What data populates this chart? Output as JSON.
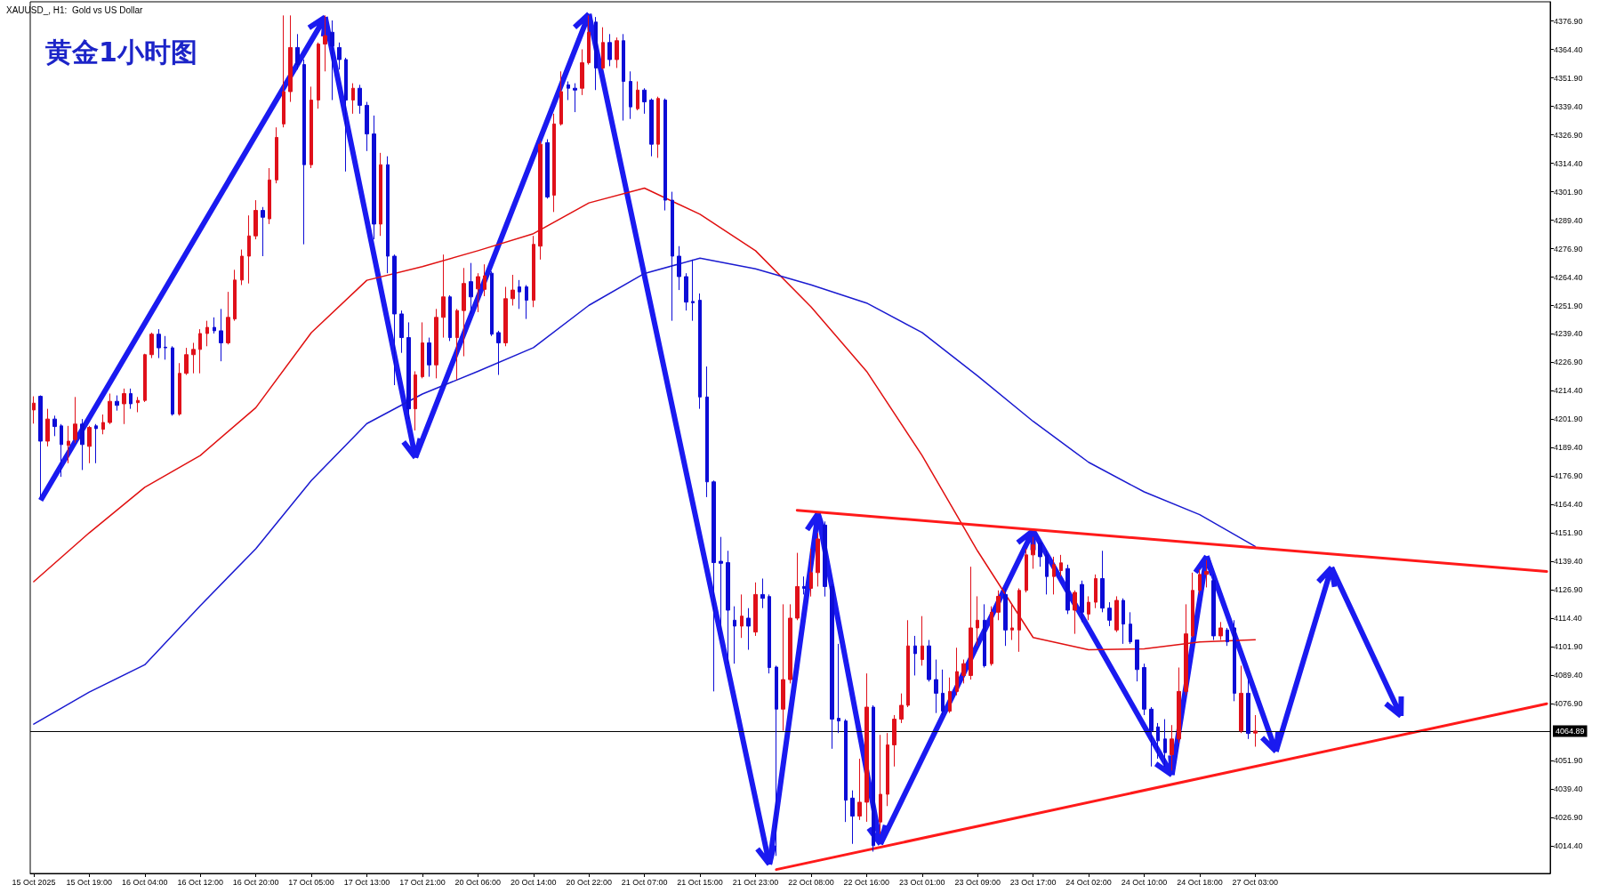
{
  "chart_data": {
    "type": "candlestick",
    "title": "黄金1小时图",
    "subtitle": "XAUUSD_, H1:  Gold vs US Dollar",
    "categories": [
      "15 Oct 2025",
      null,
      null,
      null,
      null,
      null,
      null,
      null,
      "15 Oct 19:00",
      null,
      null,
      null,
      null,
      null,
      null,
      null,
      "16 Oct 04:00",
      null,
      null,
      null,
      null,
      null,
      null,
      null,
      "16 Oct 12:00",
      null,
      null,
      null,
      null,
      null,
      null,
      null,
      "16 Oct 20:00",
      null,
      null,
      null,
      null,
      null,
      null,
      null,
      "17 Oct 05:00",
      null,
      null,
      null,
      null,
      null,
      null,
      null,
      "17 Oct 13:00",
      null,
      null,
      null,
      null,
      null,
      null,
      null,
      "17 Oct 21:00",
      null,
      null,
      null,
      null,
      null,
      null,
      null,
      "20 Oct 06:00",
      null,
      null,
      null,
      null,
      null,
      null,
      null,
      "20 Oct 14:00",
      null,
      null,
      null,
      null,
      null,
      null,
      null,
      "20 Oct 22:00",
      null,
      null,
      null,
      null,
      null,
      null,
      null,
      "21 Oct 07:00",
      null,
      null,
      null,
      null,
      null,
      null,
      null,
      "21 Oct 15:00",
      null,
      null,
      null,
      null,
      null,
      null,
      null,
      "21 Oct 23:00",
      null,
      null,
      null,
      null,
      null,
      null,
      null,
      "22 Oct 08:00",
      null,
      null,
      null,
      null,
      null,
      null,
      null,
      "22 Oct 16:00",
      null,
      null,
      null,
      null,
      null,
      null,
      null,
      "23 Oct 01:00",
      null,
      null,
      null,
      null,
      null,
      null,
      null,
      "23 Oct 09:00",
      null,
      null,
      null,
      null,
      null,
      null,
      null,
      "23 Oct 17:00",
      null,
      null,
      null,
      null,
      null,
      null,
      null,
      "24 Oct 02:00",
      null,
      null,
      null,
      null,
      null,
      null,
      null,
      "24 Oct 10:00",
      null,
      null,
      null,
      null,
      null,
      null,
      null,
      "24 Oct 18:00",
      null,
      null,
      null,
      null,
      null,
      null,
      null,
      "27 Oct 03:00",
      null,
      null,
      null,
      null,
      null,
      null,
      null,
      null,
      null,
      null,
      null,
      null,
      null,
      null,
      null,
      null,
      null,
      null,
      null,
      null,
      null,
      null,
      null,
      null,
      null,
      null,
      null,
      null,
      null,
      null,
      null,
      null,
      null,
      null,
      null,
      null,
      null,
      null,
      null,
      null,
      null,
      null
    ],
    "ohlc": [
      [
        4206,
        4212,
        4200,
        4209
      ],
      [
        4212,
        4212.4,
        4167.7,
        4192.3
      ],
      [
        4192.3,
        4206.5,
        4190,
        4202
      ],
      [
        4202,
        4203.5,
        4194.5,
        4198.7
      ],
      [
        4199,
        4199.8,
        4176.6,
        4190.8
      ],
      [
        4190.4,
        4199,
        4182.6,
        4192.3
      ],
      [
        4193,
        4211.7,
        4191.5,
        4199.8
      ],
      [
        4199.8,
        4202,
        4179.6,
        4190.8
      ],
      [
        4190,
        4199,
        4182.6,
        4198.3
      ],
      [
        4199,
        4199.8,
        4182.6,
        4197.8
      ],
      [
        4197.5,
        4204,
        4195.3,
        4200.5
      ],
      [
        4200.5,
        4213.2,
        4199.8,
        4209.8
      ],
      [
        4209.8,
        4212.4,
        4205.7,
        4208
      ],
      [
        4208.7,
        4215.4,
        4199.8,
        4213.2
      ],
      [
        4213.2,
        4215.4,
        4206.5,
        4208.7
      ],
      [
        4209.2,
        4211.7,
        4205,
        4210.2
      ],
      [
        4210.2,
        4230.7,
        4209.5,
        4230.3
      ],
      [
        4230.3,
        4240,
        4228.8,
        4239.3
      ],
      [
        4239.3,
        4241.5,
        4228.8,
        4233.3
      ],
      [
        4233.6,
        4238.5,
        4228.1,
        4233.3
      ],
      [
        4233.3,
        4234,
        4203.5,
        4204.2
      ],
      [
        4204.2,
        4226.6,
        4203.5,
        4222.1
      ],
      [
        4222.1,
        4233.3,
        4221.4,
        4230.3
      ],
      [
        4230.3,
        4235.5,
        4222.1,
        4232.6
      ],
      [
        4232.6,
        4241.5,
        4222.1,
        4239.6
      ],
      [
        4239.6,
        4245.2,
        4234,
        4242.3
      ],
      [
        4242.3,
        4246.7,
        4239.6,
        4240.8
      ],
      [
        4240.8,
        4250.4,
        4227.4,
        4235.5
      ],
      [
        4235.5,
        4257.9,
        4234.8,
        4246.7
      ],
      [
        4246,
        4267.6,
        4245.2,
        4263.1
      ],
      [
        4263.1,
        4276.5,
        4260.9,
        4273.6
      ],
      [
        4273.6,
        4291.5,
        4261.6,
        4282.5
      ],
      [
        4282.5,
        4298.2,
        4281,
        4293.7
      ],
      [
        4293.7,
        4295.2,
        4273.6,
        4290.7
      ],
      [
        4290,
        4312.3,
        4287.7,
        4307.1
      ],
      [
        4307.1,
        4330.2,
        4305.6,
        4325.8
      ],
      [
        4331.7,
        4379.4,
        4330.2,
        4345.9
      ],
      [
        4345.9,
        4379.4,
        4341.4,
        4365.3
      ],
      [
        4365.3,
        4371.2,
        4355.6,
        4357.8
      ],
      [
        4357.8,
        4360,
        4278.8,
        4313.8
      ],
      [
        4313.8,
        4348.1,
        4312.3,
        4342.2
      ],
      [
        4342.2,
        4367.5,
        4338.4,
        4366.8
      ],
      [
        4366.8,
        4379.4,
        4354.8,
        4370.5
      ],
      [
        4372,
        4377.2,
        4342.2,
        4366
      ],
      [
        4365.3,
        4367.5,
        4355.6,
        4360
      ],
      [
        4360,
        4360.8,
        4310.8,
        4342.2
      ],
      [
        4342.2,
        4349.6,
        4336.2,
        4347.4
      ],
      [
        4347.4,
        4348.9,
        4336.2,
        4339.9
      ],
      [
        4339.9,
        4341.4,
        4319.8,
        4327.3
      ],
      [
        4327.3,
        4335.4,
        4281,
        4287.7
      ],
      [
        4287.7,
        4319,
        4282.5,
        4313.8
      ],
      [
        4313.8,
        4317.5,
        4266.1,
        4273.6
      ],
      [
        4273.6,
        4274.3,
        4216.9,
        4248.2
      ],
      [
        4248.2,
        4249.7,
        4231.1,
        4237.8
      ],
      [
        4237.8,
        4244.5,
        4202,
        4206.5
      ],
      [
        4206.5,
        4223,
        4197,
        4221.4
      ],
      [
        4220.6,
        4244.5,
        4219.9,
        4235.5
      ],
      [
        4235.5,
        4237.8,
        4220.6,
        4225.8
      ],
      [
        4225.8,
        4250.4,
        4219.9,
        4246.7
      ],
      [
        4246.7,
        4274.3,
        4237.8,
        4255.7
      ],
      [
        4255.7,
        4256.4,
        4236.3,
        4237.8
      ],
      [
        4237.8,
        4250.4,
        4219.1,
        4249.7
      ],
      [
        4249.7,
        4268.4,
        4229.6,
        4261.6
      ],
      [
        4262.4,
        4270.6,
        4248.2,
        4255.7
      ],
      [
        4259.2,
        4266.1,
        4249,
        4264.6
      ],
      [
        4259,
        4270,
        4256,
        4265
      ],
      [
        4266.1,
        4266.9,
        4238.5,
        4239.3
      ],
      [
        4240,
        4240.8,
        4221.4,
        4235.5
      ],
      [
        4235.5,
        4260.1,
        4234,
        4254.9
      ],
      [
        4254.9,
        4265.4,
        4251.9,
        4258.7
      ],
      [
        4260.1,
        4263.1,
        4250.4,
        4257.9
      ],
      [
        4260.1,
        4260.9,
        4246,
        4254.2
      ],
      [
        4254.2,
        4282.5,
        4251.2,
        4278.8
      ],
      [
        4278,
        4324.3,
        4272.1,
        4322.8
      ],
      [
        4323.5,
        4325,
        4298.9,
        4299.6
      ],
      [
        4300.4,
        4336.2,
        4293,
        4331.7
      ],
      [
        4331.7,
        4354.8,
        4331,
        4345.9
      ],
      [
        4348.9,
        4350.4,
        4342.2,
        4347.4
      ],
      [
        4347.4,
        4349.6,
        4336.9,
        4346.6
      ],
      [
        4347.4,
        4364.5,
        4344.4,
        4358.6
      ],
      [
        4358.6,
        4379.4,
        4357.8,
        4372
      ],
      [
        4376.5,
        4378.7,
        4346.6,
        4356.3
      ],
      [
        4356.3,
        4374.2,
        4355.6,
        4367.5
      ],
      [
        4367.5,
        4371.2,
        4357.1,
        4360
      ],
      [
        4360,
        4369.7,
        4356.3,
        4368.3
      ],
      [
        4368.3,
        4371.2,
        4333.2,
        4350.4
      ],
      [
        4350.4,
        4354.8,
        4333.9,
        4339.2
      ],
      [
        4338.4,
        4350.4,
        4337.7,
        4346.6
      ],
      [
        4346.6,
        4347.4,
        4336.2,
        4341.4
      ],
      [
        4342.2,
        4342.9,
        4317.5,
        4322.8
      ],
      [
        4322.8,
        4343.7,
        4316.8,
        4342.9
      ],
      [
        4342.2,
        4342.9,
        4293.7,
        4298.2
      ],
      [
        4298.2,
        4301.9,
        4245.2,
        4273.6
      ],
      [
        4273.6,
        4278,
        4258.7,
        4264.6
      ],
      [
        4264.6,
        4266.1,
        4249.7,
        4253.4
      ],
      [
        4253.7,
        4272.1,
        4245.2,
        4253.1
      ],
      [
        4254.2,
        4257.2,
        4206.5,
        4211.7
      ],
      [
        4211.7,
        4225.1,
        4167.7,
        4174.4
      ],
      [
        4174.4,
        4175,
        4082.3,
        4138.9
      ],
      [
        4139.5,
        4150.2,
        4104.9,
        4138.6
      ],
      [
        4138.9,
        4144.1,
        4094.5,
        4118
      ],
      [
        4113.6,
        4119.7,
        4094.5,
        4111
      ],
      [
        4111,
        4124.9,
        4105.8,
        4115.4
      ],
      [
        4114.5,
        4118.9,
        4100.6,
        4111
      ],
      [
        4108.4,
        4130.2,
        4106.7,
        4124.9
      ],
      [
        4124.9,
        4131.9,
        4118.9,
        4123.2
      ],
      [
        4124,
        4124.9,
        4090.2,
        4092.8
      ],
      [
        4093,
        4093.6,
        4010,
        4074.5
      ],
      [
        4074.5,
        4120.6,
        4065,
        4087.5
      ],
      [
        4087.5,
        4120.6,
        4085.8,
        4114.5
      ],
      [
        4114.5,
        4143.2,
        4113.6,
        4128.4
      ],
      [
        4128.4,
        4132.8,
        4124.9,
        4127.6
      ],
      [
        4127.6,
        4145,
        4124,
        4134.5
      ],
      [
        4134.5,
        4151.9,
        4128.4,
        4149.3
      ],
      [
        4155.4,
        4157,
        4124,
        4128.4
      ],
      [
        4128.4,
        4129.3,
        4057.1,
        4070.1
      ],
      [
        4070.5,
        4103.2,
        4064,
        4069.3
      ],
      [
        4069.3,
        4070.1,
        4024.9,
        4034.5
      ],
      [
        4035.4,
        4038.8,
        4015.3,
        4027.5
      ],
      [
        4027.5,
        4052.7,
        4025.8,
        4033.6
      ],
      [
        4033.6,
        4090.2,
        4025,
        4075.4
      ],
      [
        4075.4,
        4076.2,
        4011.9,
        4014.5
      ],
      [
        4024.9,
        4063.2,
        4019.7,
        4037.1
      ],
      [
        4037.1,
        4064,
        4031.9,
        4058.8
      ],
      [
        4058.8,
        4071.9,
        4049.3,
        4070.1
      ],
      [
        4070.1,
        4081.4,
        4068.4,
        4076.2
      ],
      [
        4076.2,
        4113.6,
        4075.4,
        4102.3
      ],
      [
        4102.3,
        4106.7,
        4089.3,
        4098.9
      ],
      [
        4096.3,
        4115.4,
        4093.6,
        4102.3
      ],
      [
        4102.3,
        4104.9,
        4086.6,
        4087.5
      ],
      [
        4087.5,
        4096.3,
        4072.8,
        4081.5
      ],
      [
        4081.5,
        4091.9,
        4071.9,
        4073.6
      ],
      [
        4073.6,
        4088.4,
        4072.8,
        4082.3
      ],
      [
        4082.3,
        4101.5,
        4080.6,
        4091
      ],
      [
        4089.3,
        4096.3,
        4085.8,
        4094.5
      ],
      [
        4089.3,
        4137.1,
        4087.5,
        4110.2
      ],
      [
        4110.2,
        4124.1,
        4102.3,
        4113.6
      ],
      [
        4113.6,
        4120.6,
        4092.8,
        4093.6
      ],
      [
        4094.5,
        4119.7,
        4093.6,
        4117.1
      ],
      [
        4117.1,
        4126.7,
        4113.6,
        4124.1
      ],
      [
        4124.9,
        4127.6,
        4102.3,
        4109.3
      ],
      [
        4109.3,
        4120.6,
        4104.9,
        4110.2
      ],
      [
        4109.3,
        4127.6,
        4099.7,
        4126.7
      ],
      [
        4126.7,
        4145,
        4125.8,
        4142.3
      ],
      [
        4142.3,
        4150.2,
        4136.2,
        4146.7
      ],
      [
        4147.5,
        4148.4,
        4137.1,
        4141.5
      ],
      [
        4142.3,
        4144.1,
        4124.9,
        4132.8
      ],
      [
        4132.8,
        4141.5,
        4124.9,
        4138
      ],
      [
        4135.4,
        4142.3,
        4132.8,
        4138.8
      ],
      [
        4136.3,
        4138,
        4116.3,
        4118
      ],
      [
        4118,
        4126.7,
        4107.6,
        4125.8
      ],
      [
        4129.3,
        4131,
        4112.8,
        4117.1
      ],
      [
        4116.3,
        4124.1,
        4113.6,
        4121.5
      ],
      [
        4121.5,
        4133.7,
        4118.9,
        4131.9
      ],
      [
        4131.9,
        4144.1,
        4117.1,
        4118.9
      ],
      [
        4118.9,
        4121.5,
        4111,
        4113.6
      ],
      [
        4109.3,
        4124.1,
        4108.4,
        4122.3
      ],
      [
        4122.3,
        4123.2,
        4103.2,
        4111.9
      ],
      [
        4111.9,
        4117.1,
        4103.2,
        4104.1
      ],
      [
        4104.9,
        4104.9,
        4086.7,
        4091.9
      ],
      [
        4092.8,
        4094.5,
        4071.9,
        4074.5
      ],
      [
        4074.5,
        4075.4,
        4049.3,
        4065
      ],
      [
        4066.7,
        4068.4,
        4052.7,
        4060.6
      ],
      [
        4061.4,
        4070.1,
        4049.3,
        4055.4
      ],
      [
        4054.5,
        4067.5,
        4047.5,
        4061.4
      ],
      [
        4061.4,
        4092.8,
        4059.7,
        4082.3
      ],
      [
        4082.3,
        4120.6,
        4080.6,
        4107.6
      ],
      [
        4106.7,
        4134.5,
        4106,
        4126.7
      ],
      [
        4126.7,
        4136,
        4125,
        4133.7
      ],
      [
        4133.7,
        4140,
        4128,
        4135
      ],
      [
        4131,
        4133.7,
        4104.9,
        4106.7
      ],
      [
        4106.7,
        4112.8,
        4104.9,
        4110.2
      ],
      [
        4109.3,
        4110.2,
        4102.3,
        4104.1
      ],
      [
        4110.2,
        4113.6,
        4078,
        4081.5
      ],
      [
        4064.9,
        4093.6,
        4064,
        4081.5
      ],
      [
        4081.5,
        4087.5,
        4061.4,
        4063.8
      ],
      [
        4064,
        4071.9,
        4058,
        4064.89
      ],
      null,
      null,
      null,
      null,
      null,
      null,
      null,
      null,
      null,
      null,
      null,
      null,
      null,
      null,
      null,
      null,
      null,
      null,
      null,
      null,
      null,
      null,
      null,
      null,
      null,
      null,
      null,
      null,
      null,
      null,
      null,
      null,
      null,
      null,
      null,
      null,
      null,
      null,
      null,
      null,
      null,
      null
    ],
    "colors": [
      "#e0101a",
      "#0c0cd6",
      "#e0101a",
      "#0c0cd6",
      "#0c0cd6",
      "#e0101a",
      "#e0101a",
      "#0c0cd6",
      "#e0101a",
      "#0c0cd6",
      "#e0101a",
      "#e0101a",
      "#0c0cd6",
      "#e0101a",
      "#0c0cd6",
      "#e0101a",
      "#e0101a",
      "#e0101a",
      "#0c0cd6",
      "#0c0cd6",
      "#0c0cd6",
      "#e0101a",
      "#e0101a",
      "#e0101a",
      "#e0101a",
      "#e0101a",
      "#0c0cd6",
      "#0c0cd6",
      "#e0101a",
      "#e0101a",
      "#e0101a",
      "#e0101a",
      "#e0101a",
      "#0c0cd6",
      "#e0101a",
      "#e0101a",
      "#e0101a",
      "#e0101a",
      "#0c0cd6",
      "#0c0cd6",
      "#e0101a",
      "#e0101a",
      "#e0101a",
      "#0c0cd6",
      "#0c0cd6",
      "#0c0cd6",
      "#e0101a",
      "#0c0cd6",
      "#0c0cd6",
      "#0c0cd6",
      "#e0101a",
      "#0c0cd6",
      "#0c0cd6",
      "#0c0cd6",
      "#0c0cd6",
      "#e0101a",
      "#e0101a",
      "#0c0cd6",
      "#e0101a",
      "#e0101a",
      "#0c0cd6",
      "#e0101a",
      "#e0101a",
      "#0c0cd6",
      "#e0101a",
      "#e0101a",
      "#0c0cd6",
      "#0c0cd6",
      "#e0101a",
      "#e0101a",
      "#0c0cd6",
      "#0c0cd6",
      "#e0101a",
      "#e0101a",
      "#0c0cd6",
      "#e0101a",
      "#e0101a",
      "#0c0cd6",
      "#0c0cd6",
      "#e0101a",
      "#e0101a",
      "#0c0cd6",
      "#e0101a",
      "#0c0cd6",
      "#e0101a",
      "#0c0cd6",
      "#0c0cd6",
      "#e0101a",
      "#0c0cd6",
      "#0c0cd6",
      "#e0101a",
      "#0c0cd6",
      "#0c0cd6",
      "#0c0cd6",
      "#0c0cd6",
      "#0c0cd6",
      "#0c0cd6",
      "#0c0cd6",
      "#0c0cd6",
      "#0c0cd6",
      "#0c0cd6",
      "#0c0cd6",
      "#e0101a",
      "#0c0cd6",
      "#e0101a",
      "#0c0cd6",
      "#0c0cd6",
      "#0c0cd6",
      "#e0101a",
      "#e0101a",
      "#e0101a",
      "#0c0cd6",
      "#e0101a",
      "#e0101a",
      "#0c0cd6",
      "#0c0cd6",
      "#0c0cd6",
      "#0c0cd6",
      "#0c0cd6",
      "#e0101a",
      "#e0101a",
      "#0c0cd6",
      "#e0101a",
      "#e0101a",
      "#e0101a",
      "#e0101a",
      "#e0101a",
      "#0c0cd6",
      "#e0101a",
      "#0c0cd6",
      "#0c0cd6",
      "#0c0cd6",
      "#e0101a",
      "#e0101a",
      "#e0101a",
      "#e0101a",
      "#e0101a",
      "#0c0cd6",
      "#e0101a",
      "#e0101a",
      "#0c0cd6",
      "#e0101a",
      "#e0101a",
      "#e0101a",
      "#e0101a",
      "#0c0cd6",
      "#0c0cd6",
      "#e0101a",
      "#e0101a",
      "#0c0cd6",
      "#e0101a",
      "#0c0cd6",
      "#e0101a",
      "#e0101a",
      "#0c0cd6",
      "#0c0cd6",
      "#e0101a",
      "#0c0cd6",
      "#0c0cd6",
      "#0c0cd6",
      "#0c0cd6",
      "#0c0cd6",
      "#0c0cd6",
      "#0c0cd6",
      "#e0101a",
      "#e0101a",
      "#e0101a",
      "#e0101a",
      "#e0101a",
      "#e0101a",
      "#0c0cd6",
      "#e0101a",
      "#0c0cd6",
      "#0c0cd6",
      "#e0101a",
      "#0c0cd6",
      "#e0101a",
      null,
      null,
      null,
      null,
      null,
      null,
      null,
      null,
      null,
      null,
      null,
      null,
      null,
      null,
      null,
      null,
      null,
      null,
      null,
      null,
      null,
      null,
      null,
      null,
      null,
      null,
      null,
      null,
      null,
      null,
      null,
      null,
      null,
      null,
      null,
      null,
      null,
      null,
      null,
      null,
      null,
      null
    ],
    "series": [
      {
        "type": "line",
        "color": "#e01010",
        "values": [
          4130.5,
          null,
          null,
          null,
          null,
          null,
          null,
          null,
          4152,
          null,
          null,
          null,
          null,
          null,
          null,
          null,
          4172,
          null,
          null,
          null,
          null,
          null,
          null,
          null,
          4186,
          null,
          null,
          null,
          null,
          null,
          null,
          null,
          4207,
          null,
          null,
          null,
          null,
          null,
          null,
          null,
          4240,
          null,
          null,
          null,
          null,
          null,
          null,
          null,
          4263,
          null,
          null,
          null,
          null,
          null,
          null,
          null,
          4269,
          null,
          null,
          null,
          null,
          null,
          null,
          null,
          4276,
          null,
          null,
          null,
          null,
          null,
          null,
          null,
          4283.5,
          null,
          null,
          null,
          null,
          null,
          null,
          null,
          4297,
          null,
          null,
          null,
          null,
          null,
          null,
          null,
          4303.5,
          null,
          null,
          null,
          null,
          null,
          null,
          null,
          4292,
          null,
          null,
          null,
          null,
          null,
          null,
          null,
          4276,
          null,
          null,
          null,
          null,
          null,
          null,
          null,
          4251.3,
          null,
          null,
          null,
          null,
          null,
          null,
          null,
          4223,
          null,
          null,
          null,
          null,
          null,
          null,
          null,
          4186,
          null,
          null,
          null,
          null,
          null,
          null,
          null,
          4144,
          null,
          null,
          null,
          null,
          null,
          null,
          null,
          4106,
          null,
          null,
          null,
          null,
          null,
          null,
          null,
          4100.6,
          null,
          null,
          null,
          null,
          null,
          null,
          null,
          4101,
          null,
          null,
          null,
          null,
          null,
          null,
          null,
          4104,
          null,
          null,
          null,
          null,
          null,
          null,
          null,
          4105,
          null,
          null,
          null,
          null,
          null,
          null,
          null,
          null,
          null,
          null,
          null,
          null,
          null,
          null,
          null,
          null,
          null,
          null,
          null,
          null,
          null,
          null,
          null,
          null,
          null,
          null,
          null,
          null,
          null,
          null,
          null,
          null,
          null,
          null,
          null,
          null,
          null,
          null,
          null,
          null,
          null,
          null
        ]
      },
      {
        "type": "line",
        "color": "#1a1ad0",
        "values": [
          4067.9,
          null,
          null,
          null,
          null,
          null,
          null,
          null,
          4082,
          null,
          null,
          null,
          null,
          null,
          null,
          null,
          4094,
          null,
          null,
          null,
          null,
          null,
          null,
          null,
          4120,
          null,
          null,
          null,
          null,
          null,
          null,
          null,
          4145,
          null,
          null,
          null,
          null,
          null,
          null,
          null,
          4175,
          null,
          null,
          null,
          null,
          null,
          null,
          null,
          4200,
          null,
          null,
          null,
          null,
          null,
          null,
          null,
          4213,
          null,
          null,
          null,
          null,
          null,
          null,
          null,
          4223,
          null,
          null,
          null,
          null,
          null,
          null,
          null,
          4233.4,
          null,
          null,
          null,
          null,
          null,
          null,
          null,
          4252,
          null,
          null,
          null,
          null,
          null,
          null,
          null,
          4266,
          null,
          null,
          null,
          null,
          null,
          null,
          null,
          4272.7,
          null,
          null,
          null,
          null,
          null,
          null,
          null,
          4268,
          null,
          null,
          null,
          null,
          null,
          null,
          null,
          4261,
          null,
          null,
          null,
          null,
          null,
          null,
          null,
          4253,
          null,
          null,
          null,
          null,
          null,
          null,
          null,
          4240,
          null,
          null,
          null,
          null,
          null,
          null,
          null,
          4221,
          null,
          null,
          null,
          null,
          null,
          null,
          null,
          4201,
          null,
          null,
          null,
          null,
          null,
          null,
          null,
          4183,
          null,
          null,
          null,
          null,
          null,
          null,
          null,
          4170,
          null,
          null,
          null,
          null,
          null,
          null,
          null,
          4160,
          null,
          null,
          null,
          null,
          null,
          null,
          null,
          4146,
          null,
          null,
          null,
          null,
          null,
          null,
          null,
          null,
          null,
          null,
          null,
          null,
          null,
          null,
          null,
          null,
          null,
          null,
          null,
          null,
          null,
          null,
          null,
          null,
          null,
          null,
          null,
          null,
          null,
          null,
          null,
          null,
          null,
          null,
          null,
          null,
          null,
          null,
          null,
          null,
          null,
          null
        ]
      },
      {
        "type": "line",
        "color": "#ff1a1a",
        "values": [
          null,
          null,
          null,
          null,
          null,
          null,
          null,
          null,
          null,
          null,
          null,
          null,
          null,
          null,
          null,
          null,
          null,
          null,
          null,
          null,
          null,
          null,
          null,
          null,
          null,
          null,
          null,
          null,
          null,
          null,
          null,
          null,
          null,
          null,
          null,
          null,
          null,
          null,
          null,
          null,
          null,
          null,
          null,
          null,
          null,
          null,
          null,
          null,
          null,
          null,
          null,
          null,
          null,
          null,
          null,
          null,
          null,
          null,
          null,
          null,
          null,
          null,
          null,
          null,
          null,
          null,
          null,
          null,
          null,
          null,
          null,
          null,
          null,
          null,
          null,
          null,
          null,
          null,
          null,
          null,
          null,
          null,
          null,
          null,
          null,
          null,
          null,
          null,
          null,
          null,
          null,
          null,
          null,
          null,
          null,
          null,
          null,
          null,
          null,
          null,
          null,
          null,
          null,
          null,
          null,
          null,
          null,
          null,
          null,
          null,
          4161.9,
          null,
          null,
          null,
          null,
          null,
          null,
          null,
          null,
          null,
          null,
          null,
          null,
          null,
          null,
          null,
          null,
          null,
          null,
          null,
          null,
          null,
          null,
          null,
          null,
          null,
          null,
          null,
          null,
          null,
          null,
          null,
          null,
          null,
          null,
          null,
          null,
          null,
          null,
          null,
          null,
          null,
          null,
          null,
          null,
          null,
          null,
          null,
          null,
          null,
          null,
          null,
          null,
          null,
          null,
          null,
          null,
          null,
          null,
          null,
          null,
          null,
          null,
          null,
          null,
          null,
          null,
          null,
          null,
          null,
          null,
          null,
          null,
          null,
          null,
          null,
          null,
          null,
          null,
          null,
          null,
          null,
          null,
          null,
          null,
          null,
          null,
          null,
          null,
          null,
          null,
          null,
          null,
          null,
          null,
          null,
          null,
          null,
          null,
          null,
          null,
          null,
          null,
          null,
          null,
          null,
          null,
          null,
          4135
        ]
      },
      {
        "type": "line",
        "color": "#ff1a1a",
        "values": [
          null,
          null,
          null,
          null,
          null,
          null,
          null,
          null,
          null,
          null,
          null,
          null,
          null,
          null,
          null,
          null,
          null,
          null,
          null,
          null,
          null,
          null,
          null,
          null,
          null,
          null,
          null,
          null,
          null,
          null,
          null,
          null,
          null,
          null,
          null,
          null,
          null,
          null,
          null,
          null,
          null,
          null,
          null,
          null,
          null,
          null,
          null,
          null,
          null,
          null,
          null,
          null,
          null,
          null,
          null,
          null,
          null,
          null,
          null,
          null,
          null,
          null,
          null,
          null,
          null,
          null,
          null,
          null,
          null,
          null,
          null,
          null,
          null,
          null,
          null,
          null,
          null,
          null,
          null,
          null,
          null,
          null,
          null,
          null,
          null,
          null,
          null,
          null,
          null,
          null,
          null,
          null,
          null,
          null,
          null,
          null,
          null,
          null,
          null,
          null,
          null,
          null,
          null,
          null,
          null,
          null,
          null,
          4004,
          null,
          null,
          null,
          null,
          null,
          null,
          null,
          null,
          null,
          null,
          null,
          null,
          null,
          null,
          null,
          null,
          null,
          null,
          null,
          null,
          null,
          null,
          null,
          null,
          null,
          null,
          null,
          null,
          null,
          null,
          null,
          null,
          null,
          null,
          null,
          null,
          null,
          null,
          null,
          null,
          null,
          null,
          null,
          null,
          null,
          null,
          null,
          null,
          null,
          null,
          null,
          null,
          null,
          null,
          null,
          null,
          null,
          null,
          null,
          null,
          null,
          null,
          null,
          null,
          null,
          null,
          null,
          null,
          null,
          null,
          null,
          null,
          null,
          null,
          null,
          null,
          null,
          null,
          null,
          null,
          null,
          null,
          null,
          null,
          null,
          null,
          null,
          null,
          null,
          null,
          null,
          null,
          null,
          null,
          null,
          null,
          null,
          null,
          null,
          null,
          null,
          null,
          null,
          null,
          null,
          null,
          null,
          null,
          null,
          null,
          4076.9
        ]
      }
    ],
    "ylim": [
      4002.3,
      4385.4
    ],
    "yticks": [
      {
        "value": 4014.4,
        "label": "4014.40"
      },
      {
        "value": 4026.9,
        "label": "4026.90"
      },
      {
        "value": 4039.4,
        "label": "4039.40"
      },
      {
        "value": 4051.9,
        "label": "4051.90"
      },
      {
        "value": 4076.9,
        "label": "4076.90"
      },
      {
        "value": 4089.4,
        "label": "4089.40"
      },
      {
        "value": 4101.9,
        "label": "4101.90"
      },
      {
        "value": 4114.4,
        "label": "4114.40"
      },
      {
        "value": 4126.9,
        "label": "4126.90"
      },
      {
        "value": 4139.4,
        "label": "4139.40"
      },
      {
        "value": 4151.9,
        "label": "4151.90"
      },
      {
        "value": 4164.4,
        "label": "4164.40"
      },
      {
        "value": 4176.9,
        "label": "4176.90"
      },
      {
        "value": 4189.4,
        "label": "4189.40"
      },
      {
        "value": 4201.9,
        "label": "4201.90"
      },
      {
        "value": 4214.4,
        "label": "4214.40"
      },
      {
        "value": 4226.9,
        "label": "4226.90"
      },
      {
        "value": 4239.4,
        "label": "4239.40"
      },
      {
        "value": 4251.9,
        "label": "4251.90"
      },
      {
        "value": 4264.4,
        "label": "4264.40"
      },
      {
        "value": 4276.9,
        "label": "4276.90"
      },
      {
        "value": 4289.4,
        "label": "4289.40"
      },
      {
        "value": 4301.9,
        "label": "4301.90"
      },
      {
        "value": 4314.4,
        "label": "4314.40"
      },
      {
        "value": 4326.9,
        "label": "4326.90"
      },
      {
        "value": 4339.4,
        "label": "4339.40"
      },
      {
        "value": 4351.9,
        "label": "4351.90"
      },
      {
        "value": 4364.4,
        "label": "4364.40"
      },
      {
        "value": 4376.9,
        "label": "4376.90"
      }
    ],
    "ref_lines": [
      {
        "axis": "y",
        "value": 4064.89,
        "label": "4064.89",
        "color": "#000000"
      }
    ],
    "marker": "none"
  }
}
